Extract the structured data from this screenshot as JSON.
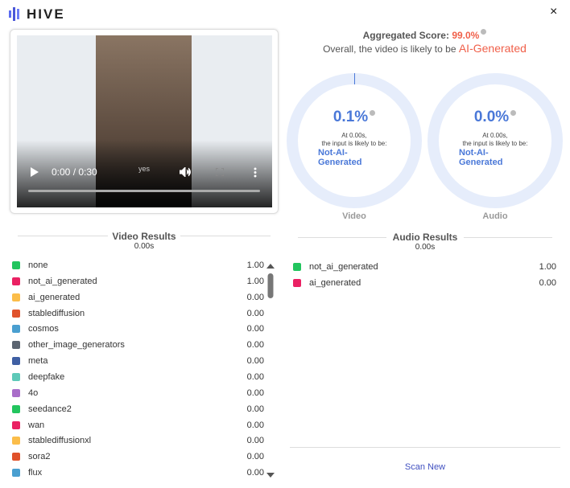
{
  "header": {
    "logo": "HIVE",
    "close": "×"
  },
  "video_player": {
    "time": "0:00 / 0:30",
    "caption": "yes"
  },
  "summary": {
    "label": "Aggregated Score:",
    "score": "99.0%",
    "sentence": "Overall, the video is likely to be",
    "verdict": "AI-Generated"
  },
  "gauges": [
    {
      "name": "Video",
      "value": 0.1,
      "value_label": "0.1%",
      "time": "At 0.00s,",
      "text": "the input is likely to be:",
      "verdict": "Not-AI-Generated"
    },
    {
      "name": "Audio",
      "value": 0.0,
      "value_label": "0.0%",
      "time": "At 0.00s,",
      "text": "the input is likely to be:",
      "verdict": "Not-AI-Generated"
    }
  ],
  "video_results": {
    "title": "Video Results",
    "time": "0.00s",
    "rows": [
      {
        "label": "none",
        "score": "1.00",
        "color": "#22c55e"
      },
      {
        "label": "not_ai_generated",
        "score": "1.00",
        "color": "#ea2163"
      },
      {
        "label": "ai_generated",
        "score": "0.00",
        "color": "#fbbd4a"
      },
      {
        "label": "stablediffusion",
        "score": "0.00",
        "color": "#e0522b"
      },
      {
        "label": "cosmos",
        "score": "0.00",
        "color": "#4a9fd0"
      },
      {
        "label": "other_image_generators",
        "score": "0.00",
        "color": "#5b6470"
      },
      {
        "label": "meta",
        "score": "0.00",
        "color": "#3f5fa3"
      },
      {
        "label": "deepfake",
        "score": "0.00",
        "color": "#5ec9b8"
      },
      {
        "label": "4o",
        "score": "0.00",
        "color": "#a96dc9"
      },
      {
        "label": "seedance2",
        "score": "0.00",
        "color": "#22c55e"
      },
      {
        "label": "wan",
        "score": "0.00",
        "color": "#ea2163"
      },
      {
        "label": "stablediffusionxl",
        "score": "0.00",
        "color": "#fbbd4a"
      },
      {
        "label": "sora2",
        "score": "0.00",
        "color": "#e0522b"
      },
      {
        "label": "flux",
        "score": "0.00",
        "color": "#4a9fd0"
      }
    ]
  },
  "audio_results": {
    "title": "Audio Results",
    "time": "0.00s",
    "rows": [
      {
        "label": "not_ai_generated",
        "score": "1.00",
        "color": "#22c55e"
      },
      {
        "label": "ai_generated",
        "score": "0.00",
        "color": "#ea2163"
      }
    ]
  },
  "button": "Scan New"
}
